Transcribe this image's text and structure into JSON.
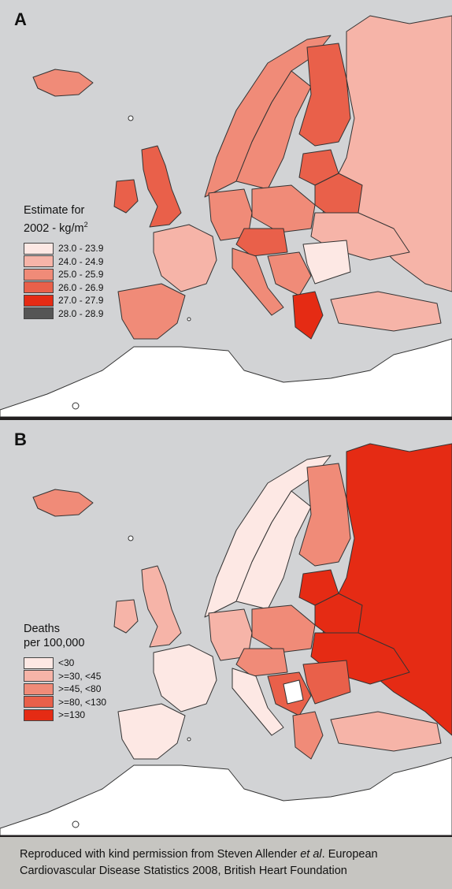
{
  "panel_a": {
    "letter": "A",
    "legend_title_line1": "Estimate for",
    "legend_title_line2": "2002 - kg/m",
    "legend_title_sup": "2",
    "legend": [
      {
        "label": "23.0 - 23.9",
        "color": "#fde8e4"
      },
      {
        "label": "24.0 - 24.9",
        "color": "#f6b4a8"
      },
      {
        "label": "25.0 - 25.9",
        "color": "#f08b78"
      },
      {
        "label": "26.0 - 26.9",
        "color": "#e9604a"
      },
      {
        "label": "27.0 - 27.9",
        "color": "#e52b14"
      },
      {
        "label": "28.0 - 28.9",
        "color": "#555555"
      }
    ]
  },
  "panel_b": {
    "letter": "B",
    "legend_title_line1": "Deaths",
    "legend_title_line2": "per 100,000",
    "legend": [
      {
        "label": "<30",
        "color": "#fde8e4"
      },
      {
        "label": ">=30, <45",
        "color": "#f6b4a8"
      },
      {
        "label": ">=45, <80",
        "color": "#f08b78"
      },
      {
        "label": ">=80, <130",
        "color": "#e9604a"
      },
      {
        "label": ">=130",
        "color": "#e52b14"
      }
    ]
  },
  "credit": {
    "line1_pre": "Reproduced with kind permission from Steven Allender ",
    "line1_italic": "et al",
    "line1_post": ". European",
    "line2": "Cardiovascular Disease Statistics 2008, British Heart Foundation"
  },
  "colors": {
    "sea": "#d2d3d5",
    "non_europe_land": "#ffffff",
    "border": "#333333",
    "footer": "#c6c5c1"
  }
}
